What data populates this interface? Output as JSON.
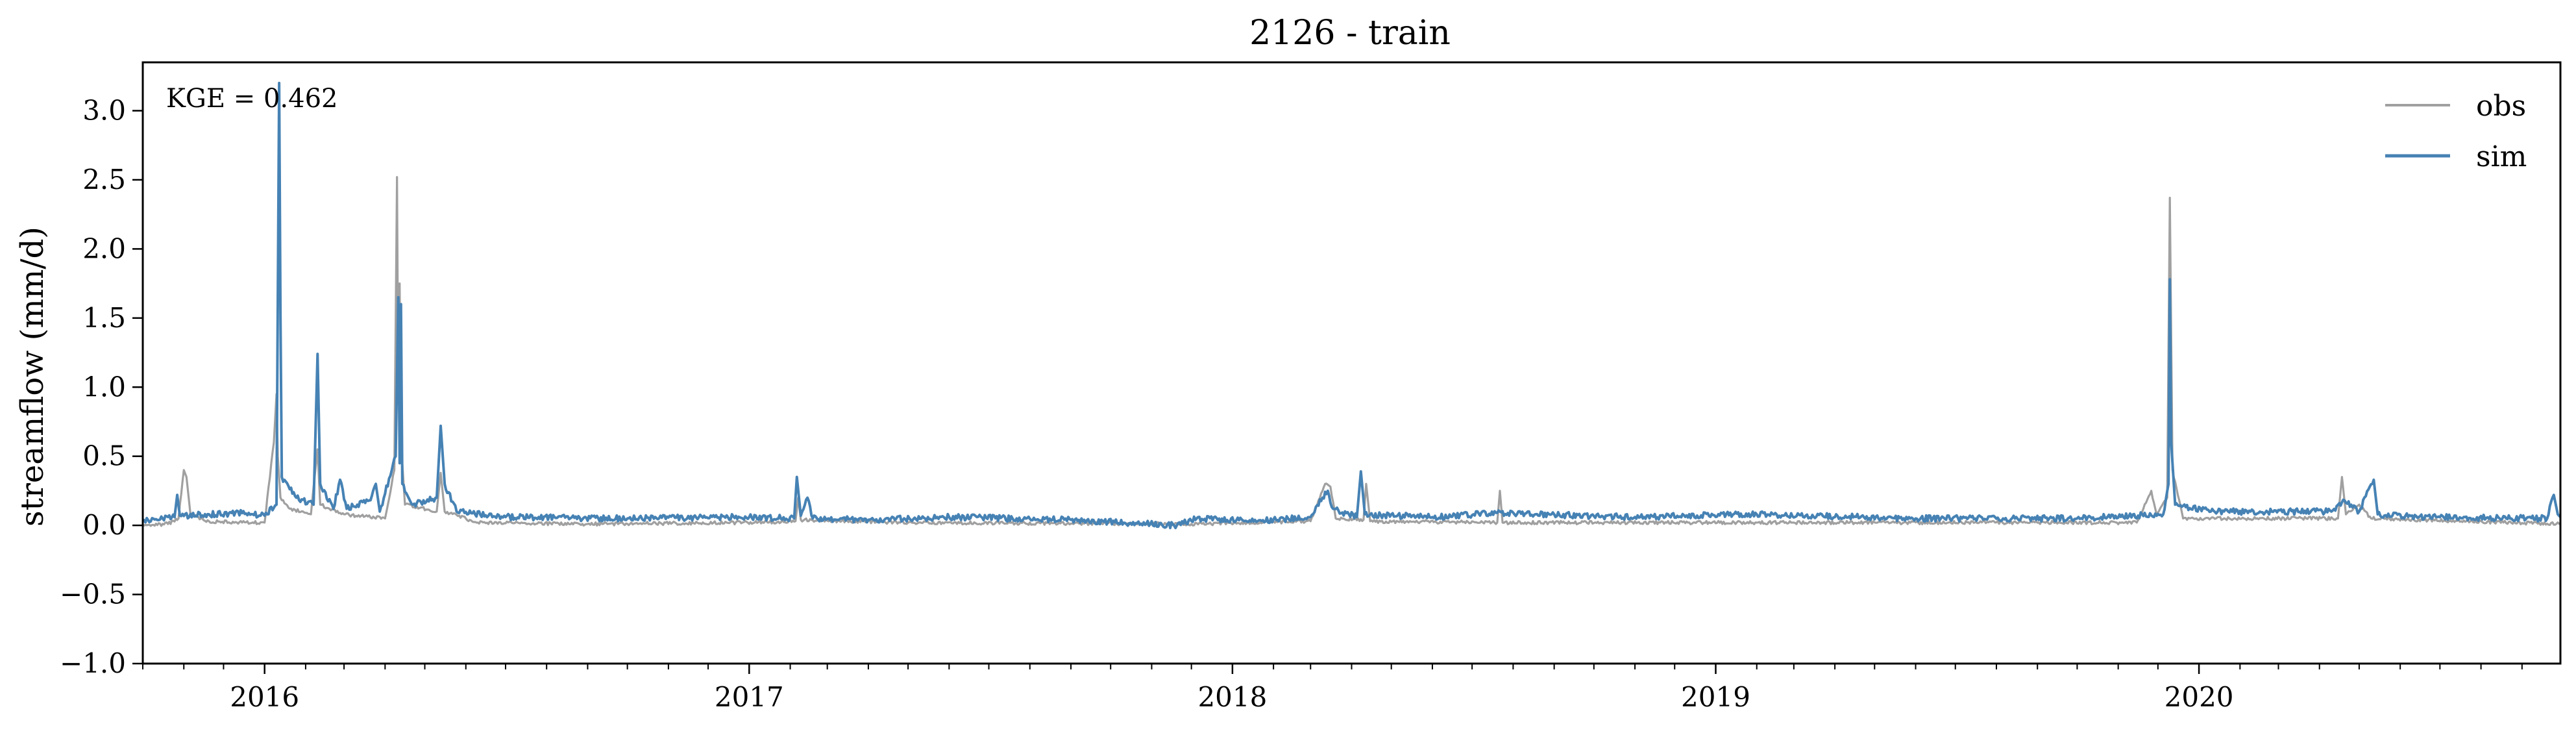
{
  "chart_data": {
    "type": "line",
    "title": "2126 - train",
    "xlabel": "",
    "ylabel": "streamflow (mm/d)",
    "xlim": [
      "2015-10-01",
      "2020-09-30"
    ],
    "ylim": [
      -1.0,
      3.35
    ],
    "y_ticks": [
      -1.0,
      -0.5,
      0.0,
      0.5,
      1.0,
      1.5,
      2.0,
      2.5,
      3.0
    ],
    "y_tick_labels": [
      "−1.0",
      "−0.5",
      "0.0",
      "0.5",
      "1.0",
      "1.5",
      "2.0",
      "2.5",
      "3.0"
    ],
    "x_ticks": [
      "2016-01-01",
      "2017-01-01",
      "2018-01-01",
      "2019-01-01",
      "2020-01-01"
    ],
    "x_tick_labels": [
      "2016",
      "2017",
      "2018",
      "2019",
      "2020"
    ],
    "grid": false,
    "legend_position": "top-right",
    "annotation": "KGE = 0.462",
    "series": [
      {
        "name": "obs",
        "color": "#a0a0a0",
        "points": [
          [
            "2015-10-01",
            0.0
          ],
          [
            "2015-10-20",
            0.01
          ],
          [
            "2015-10-28",
            0.05
          ],
          [
            "2015-11-01",
            0.4
          ],
          [
            "2015-11-03",
            0.35
          ],
          [
            "2015-11-06",
            0.08
          ],
          [
            "2015-11-20",
            0.03
          ],
          [
            "2015-12-15",
            0.02
          ],
          [
            "2016-01-01",
            0.02
          ],
          [
            "2016-01-08",
            0.6
          ],
          [
            "2016-01-10",
            0.95
          ],
          [
            "2016-01-11",
            0.5
          ],
          [
            "2016-01-13",
            0.2
          ],
          [
            "2016-01-20",
            0.12
          ],
          [
            "2016-02-05",
            0.08
          ],
          [
            "2016-02-10",
            0.55
          ],
          [
            "2016-02-12",
            0.15
          ],
          [
            "2016-03-01",
            0.08
          ],
          [
            "2016-04-01",
            0.05
          ],
          [
            "2016-04-08",
            0.4
          ],
          [
            "2016-04-10",
            2.52
          ],
          [
            "2016-04-11",
            0.9
          ],
          [
            "2016-04-12",
            1.75
          ],
          [
            "2016-04-13",
            0.6
          ],
          [
            "2016-04-16",
            0.15
          ],
          [
            "2016-05-10",
            0.1
          ],
          [
            "2016-05-13",
            0.38
          ],
          [
            "2016-05-16",
            0.1
          ],
          [
            "2016-06-10",
            0.02
          ],
          [
            "2016-09-01",
            0.01
          ],
          [
            "2016-12-31",
            0.02
          ],
          [
            "2017-02-05",
            0.03
          ],
          [
            "2017-02-07",
            0.2
          ],
          [
            "2017-02-09",
            0.04
          ],
          [
            "2017-05-01",
            0.02
          ],
          [
            "2017-12-01",
            0.01
          ],
          [
            "2018-03-01",
            0.03
          ],
          [
            "2018-03-12",
            0.3
          ],
          [
            "2018-03-16",
            0.28
          ],
          [
            "2018-03-20",
            0.05
          ],
          [
            "2018-04-10",
            0.04
          ],
          [
            "2018-04-12",
            0.3
          ],
          [
            "2018-04-15",
            0.03
          ],
          [
            "2018-07-20",
            0.02
          ],
          [
            "2018-07-22",
            0.25
          ],
          [
            "2018-07-24",
            0.02
          ],
          [
            "2019-03-01",
            0.02
          ],
          [
            "2019-11-15",
            0.02
          ],
          [
            "2019-11-26",
            0.25
          ],
          [
            "2019-11-30",
            0.08
          ],
          [
            "2019-12-08",
            0.2
          ],
          [
            "2019-12-10",
            2.37
          ],
          [
            "2019-12-12",
            0.4
          ],
          [
            "2019-12-20",
            0.05
          ],
          [
            "2020-04-15",
            0.05
          ],
          [
            "2020-04-18",
            0.35
          ],
          [
            "2020-04-21",
            0.08
          ],
          [
            "2020-05-01",
            0.15
          ],
          [
            "2020-05-10",
            0.05
          ],
          [
            "2020-09-30",
            0.01
          ]
        ]
      },
      {
        "name": "sim",
        "color": "#4682b4",
        "points": [
          [
            "2015-10-01",
            0.03
          ],
          [
            "2015-10-25",
            0.06
          ],
          [
            "2015-10-27",
            0.22
          ],
          [
            "2015-10-29",
            0.07
          ],
          [
            "2015-11-20",
            0.08
          ],
          [
            "2015-12-20",
            0.09
          ],
          [
            "2016-01-01",
            0.07
          ],
          [
            "2016-01-10",
            0.15
          ],
          [
            "2016-01-12",
            3.2
          ],
          [
            "2016-01-13",
            1.5
          ],
          [
            "2016-01-14",
            0.35
          ],
          [
            "2016-01-25",
            0.2
          ],
          [
            "2016-02-07",
            0.15
          ],
          [
            "2016-02-10",
            1.24
          ],
          [
            "2016-02-12",
            0.3
          ],
          [
            "2016-02-22",
            0.12
          ],
          [
            "2016-02-27",
            0.33
          ],
          [
            "2016-03-03",
            0.12
          ],
          [
            "2016-03-20",
            0.18
          ],
          [
            "2016-03-25",
            0.3
          ],
          [
            "2016-03-28",
            0.1
          ],
          [
            "2016-04-09",
            0.5
          ],
          [
            "2016-04-11",
            1.65
          ],
          [
            "2016-04-12",
            0.45
          ],
          [
            "2016-04-13",
            1.6
          ],
          [
            "2016-04-14",
            0.3
          ],
          [
            "2016-04-22",
            0.15
          ],
          [
            "2016-05-10",
            0.2
          ],
          [
            "2016-05-13",
            0.72
          ],
          [
            "2016-05-16",
            0.3
          ],
          [
            "2016-05-25",
            0.1
          ],
          [
            "2016-07-01",
            0.06
          ],
          [
            "2016-10-01",
            0.05
          ],
          [
            "2017-01-01",
            0.06
          ],
          [
            "2017-02-04",
            0.05
          ],
          [
            "2017-02-06",
            0.35
          ],
          [
            "2017-02-09",
            0.07
          ],
          [
            "2017-02-14",
            0.2
          ],
          [
            "2017-02-18",
            0.05
          ],
          [
            "2017-04-01",
            0.04
          ],
          [
            "2017-06-01",
            0.06
          ],
          [
            "2017-09-01",
            0.04
          ],
          [
            "2017-11-20",
            0.0
          ],
          [
            "2017-12-05",
            0.05
          ],
          [
            "2018-01-20",
            0.03
          ],
          [
            "2018-03-01",
            0.06
          ],
          [
            "2018-03-10",
            0.2
          ],
          [
            "2018-03-14",
            0.25
          ],
          [
            "2018-03-18",
            0.12
          ],
          [
            "2018-04-05",
            0.06
          ],
          [
            "2018-04-08",
            0.39
          ],
          [
            "2018-04-11",
            0.08
          ],
          [
            "2018-06-01",
            0.06
          ],
          [
            "2018-07-20",
            0.09
          ],
          [
            "2018-11-01",
            0.06
          ],
          [
            "2019-02-01",
            0.08
          ],
          [
            "2019-06-01",
            0.05
          ],
          [
            "2019-10-01",
            0.05
          ],
          [
            "2019-12-05",
            0.08
          ],
          [
            "2019-12-09",
            0.3
          ],
          [
            "2019-12-10",
            1.78
          ],
          [
            "2019-12-11",
            0.6
          ],
          [
            "2019-12-14",
            0.15
          ],
          [
            "2020-01-10",
            0.1
          ],
          [
            "2020-04-10",
            0.1
          ],
          [
            "2020-04-20",
            0.18
          ],
          [
            "2020-05-01",
            0.1
          ],
          [
            "2020-05-12",
            0.33
          ],
          [
            "2020-05-15",
            0.08
          ],
          [
            "2020-06-15",
            0.06
          ],
          [
            "2020-09-20",
            0.05
          ],
          [
            "2020-09-25",
            0.22
          ],
          [
            "2020-09-28",
            0.08
          ],
          [
            "2020-09-30",
            0.06
          ]
        ]
      }
    ]
  }
}
